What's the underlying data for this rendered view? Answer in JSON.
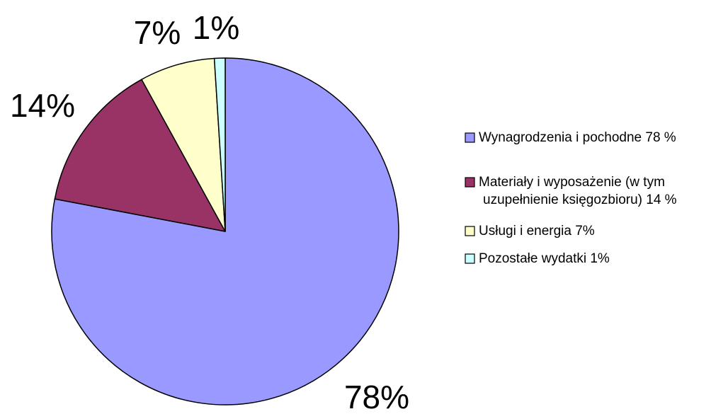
{
  "chart_data": {
    "type": "pie",
    "categories": [
      "Wynagrodzenia i pochodne 78 %",
      "Materiały i wyposażenie (w tym uzupełnienie księgozbioru) 14 %",
      "Usługi i energia 7%",
      "Pozostałe wydatki 1%"
    ],
    "values": [
      78,
      14,
      7,
      1
    ],
    "data_labels": [
      "78%",
      "14%",
      "7%",
      "1%"
    ],
    "colors": [
      "#9999ff",
      "#993366",
      "#ffffcc",
      "#ccffff"
    ],
    "legend": {
      "placement": "right",
      "entries": [
        {
          "lines": [
            "Wynagrodzenia i pochodne 78 %"
          ]
        },
        {
          "lines": [
            "Materiały i wyposażenie (w tym",
            "uzupełnienie księgozbioru) 14 %"
          ]
        },
        {
          "lines": [
            "Usługi i energia 7%"
          ]
        },
        {
          "lines": [
            "Pozostałe wydatki 1%"
          ]
        }
      ]
    },
    "title": "",
    "start_angle_deg": 0,
    "direction": "clockwise"
  }
}
